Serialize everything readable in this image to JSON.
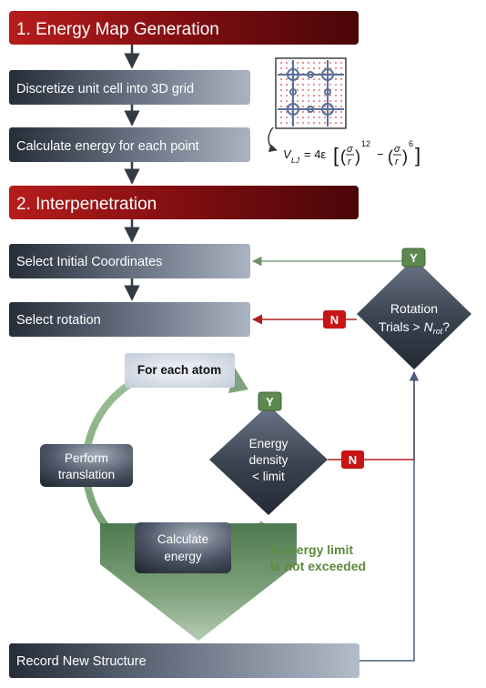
{
  "sections": {
    "energy_map": "1. Energy Map Generation",
    "interpenetration": "2. Interpenetration"
  },
  "steps": {
    "discretize": "Discretize unit cell into 3D grid",
    "calculate_energy_points": "Calculate energy for each point",
    "select_initial": "Select Initial Coordinates",
    "select_rotation": "Select rotation",
    "for_each_atom": "For each atom",
    "perform_translation_1": "Perform",
    "perform_translation_2": "translation",
    "calculate_energy_1": "Calculate",
    "calculate_energy_2": "energy",
    "record": "Record New Structure"
  },
  "decisions": {
    "rotation_1": "Rotation",
    "rotation_2_prefix": "Trials > ",
    "rotation_2_symbol": "N",
    "rotation_2_sub": "rot",
    "rotation_2_suffix": "?",
    "energy_1": "Energy",
    "energy_2": "density",
    "energy_3": "< limit"
  },
  "badges": {
    "yes": "Y",
    "no": "N"
  },
  "annotation": {
    "line1": "If energy limit",
    "line2": "is not exceeded"
  },
  "formula": {
    "lhs": "V",
    "lhs_sub": "LJ",
    "coef": "= 4ε",
    "sigma": "σ",
    "r": "r",
    "exp12": "12",
    "exp6": "6",
    "minus": "−"
  },
  "colors": {
    "section_red": "#8e0f14",
    "step_dark": "#2c3340",
    "step_light": "#8c96a6",
    "green": "#5f8a5f",
    "red_arrow": "#b31d1d",
    "badge_red": "#c81414",
    "badge_green": "#5c8a4e",
    "annotation_green": "#5a8a3c"
  }
}
